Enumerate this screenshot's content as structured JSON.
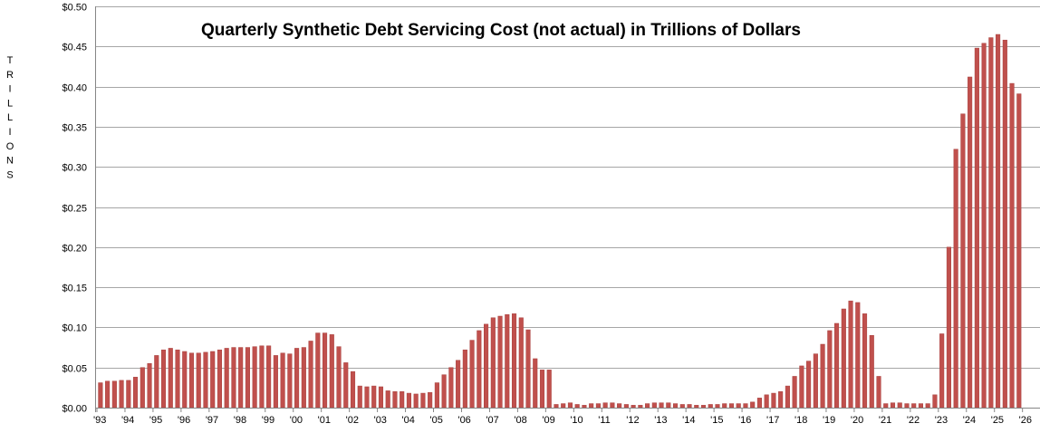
{
  "chart_data": {
    "type": "bar",
    "title": "Quarterly Synthetic Debt Servicing Cost (not actual) in Trillions of Dollars",
    "ylabel": "TRILLIONS",
    "xlabel": "",
    "ylim": [
      0,
      0.5
    ],
    "yticks": [
      "$0.00",
      "$0.05",
      "$0.10",
      "$0.15",
      "$0.20",
      "$0.25",
      "$0.30",
      "$0.35",
      "$0.40",
      "$0.45",
      "$0.50"
    ],
    "xticks": [
      "'93",
      "'94",
      "'95",
      "'96",
      "'97",
      "'98",
      "'99",
      "'00",
      "'01",
      "'02",
      "'03",
      "'04",
      "'05",
      "'06",
      "'07",
      "'08",
      "'09",
      "'10",
      "'11",
      "'12",
      "'13",
      "'14",
      "'15",
      "'16",
      "'17",
      "'18",
      "'19",
      "'20",
      "'21",
      "'22",
      "'23",
      "'24",
      "'25",
      "'26"
    ],
    "grid": true,
    "color": "#c0504d",
    "values": [
      0.031,
      0.033,
      0.033,
      0.034,
      0.034,
      0.038,
      0.05,
      0.055,
      0.065,
      0.072,
      0.074,
      0.072,
      0.07,
      0.068,
      0.068,
      0.069,
      0.07,
      0.072,
      0.074,
      0.075,
      0.075,
      0.075,
      0.076,
      0.077,
      0.077,
      0.065,
      0.068,
      0.067,
      0.074,
      0.075,
      0.083,
      0.093,
      0.093,
      0.091,
      0.076,
      0.056,
      0.045,
      0.027,
      0.026,
      0.027,
      0.026,
      0.021,
      0.02,
      0.02,
      0.018,
      0.017,
      0.018,
      0.019,
      0.031,
      0.041,
      0.05,
      0.059,
      0.072,
      0.084,
      0.096,
      0.104,
      0.112,
      0.114,
      0.116,
      0.117,
      0.112,
      0.097,
      0.061,
      0.047,
      0.047,
      0.004,
      0.005,
      0.006,
      0.004,
      0.003,
      0.005,
      0.005,
      0.006,
      0.006,
      0.005,
      0.004,
      0.003,
      0.003,
      0.005,
      0.006,
      0.006,
      0.006,
      0.005,
      0.004,
      0.004,
      0.003,
      0.003,
      0.004,
      0.004,
      0.005,
      0.005,
      0.005,
      0.005,
      0.007,
      0.012,
      0.016,
      0.018,
      0.02,
      0.027,
      0.039,
      0.052,
      0.058,
      0.067,
      0.079,
      0.096,
      0.105,
      0.123,
      0.133,
      0.131,
      0.117,
      0.09,
      0.039,
      0.005,
      0.006,
      0.006,
      0.005,
      0.005,
      0.005,
      0.005,
      0.016,
      0.092,
      0.2,
      0.322,
      0.366,
      0.412,
      0.448,
      0.454,
      0.461,
      0.465,
      0.458,
      0.404,
      0.391
    ]
  }
}
